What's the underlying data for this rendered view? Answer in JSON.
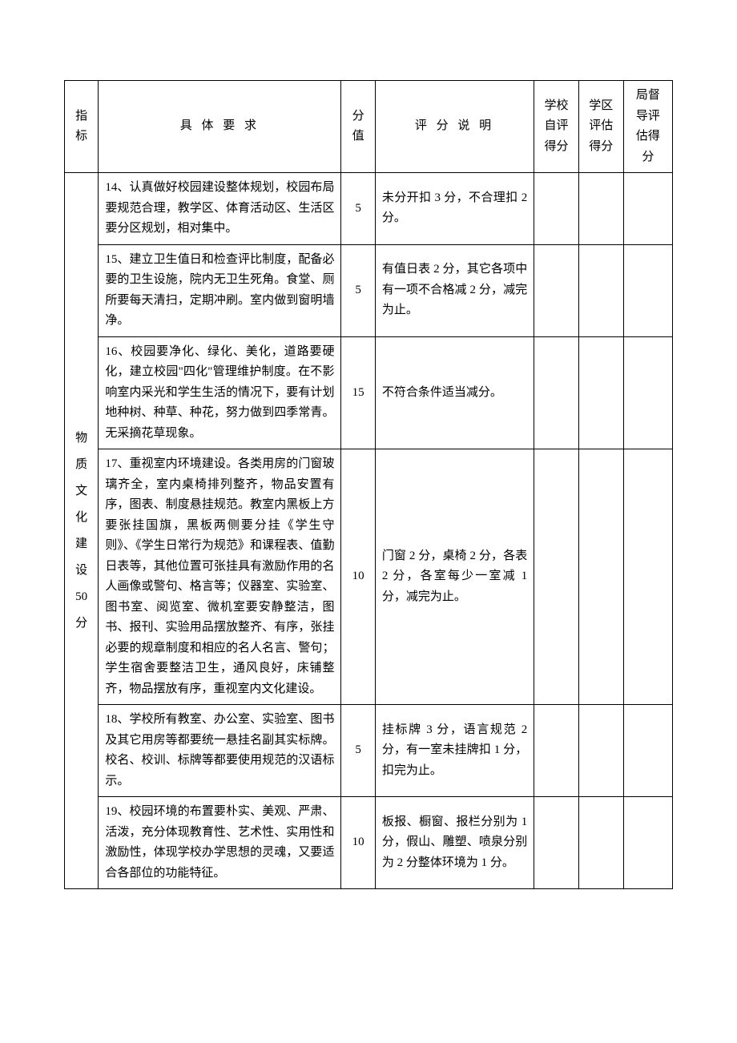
{
  "headers": {
    "indicator": "指标",
    "requirement": "具 体 要 求",
    "score": "分值",
    "explanation": "评 分 说 明",
    "self_score": "学校自评得分",
    "district_score": "学区评估得分",
    "bureau_score": "局督导评估得分"
  },
  "indicator": {
    "l1": "物",
    "l2": "质",
    "l3": "文",
    "l4": "化",
    "l5": "建",
    "l6": "设",
    "l7": "50",
    "l8": "分"
  },
  "rows": [
    {
      "req": "14、认真做好校园建设整体规划，校园布局要规范合理，教学区、体育活动区、生活区要分区规划，相对集中。",
      "score": "5",
      "explain": "未分开扣 3 分，不合理扣 2 分。"
    },
    {
      "req": "15、建立卫生值日和检查评比制度，配备必要的卫生设施，院内无卫生死角。食堂、厕所要每天清扫，定期冲刷。室内做到窗明墙净。",
      "score": "5",
      "explain": "有值日表 2 分，其它各项中有一项不合格减 2 分，减完为止。"
    },
    {
      "req": "16、校园要净化、绿化、美化，道路要硬化，建立校园\"四化\"管理维护制度。在不影响室内采光和学生生活的情况下，要有计划地种树、种草、种花，努力做到四季常青。无采摘花草现象。",
      "score": "15",
      "explain": "不符合条件适当减分。"
    },
    {
      "req": "17、重视室内环境建设。各类用房的门窗玻璃齐全，室内桌椅排列整齐，物品安置有序，图表、制度悬挂规范。教室内黑板上方要张挂国旗，黑板两侧要分挂《学生守则》、《学生日常行为规范》和课程表、值勤日表等，其他位置可张挂具有激励作用的名人画像或警句、格言等；仪器室、实验室、图书室、阅览室、微机室要安静整洁，图书、报刊、实验用品摆放整齐、有序，张挂必要的规章制度和相应的名人名言、警句；学生宿舍要整洁卫生，通风良好，床铺整齐，物品摆放有序，重视室内文化建设。",
      "score": "10",
      "explain": "门窗 2 分，桌椅 2 分，各表 2 分，各室每少一室减 1 分，减完为止。"
    },
    {
      "req": "18、学校所有教室、办公室、实验室、图书及其它用房等都要统一悬挂名副其实标牌。校名、校训、标牌等都要使用规范的汉语标示。",
      "score": "5",
      "explain": "挂标牌 3 分，语言规范 2 分，有一室未挂牌扣 1 分，扣完为止。"
    },
    {
      "req": "19、校园环境的布置要朴实、美观、严肃、活泼，充分体现教育性、艺术性、实用性和激励性，体现学校办学思想的灵魂，又要适合各部位的功能特征。",
      "score": "10",
      "explain": "板报、橱窗、报栏分别为 1 分，假山、雕塑、喷泉分别为 2 分整体环境为 1 分。"
    }
  ]
}
